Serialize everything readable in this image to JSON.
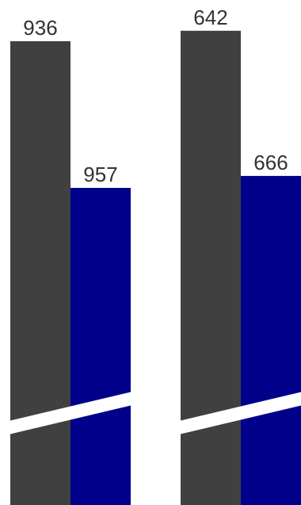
{
  "chart_data": {
    "type": "bar",
    "categories": [
      "",
      ""
    ],
    "series": [
      {
        "values": [
          936,
          957
        ],
        "color": "#404040"
      },
      {
        "values": [
          642,
          666
        ],
        "color": "#00008b"
      }
    ],
    "value_labels": [
      "936",
      "957",
      "642",
      "666"
    ],
    "axis_break": true,
    "grid": false,
    "legend": "none"
  }
}
